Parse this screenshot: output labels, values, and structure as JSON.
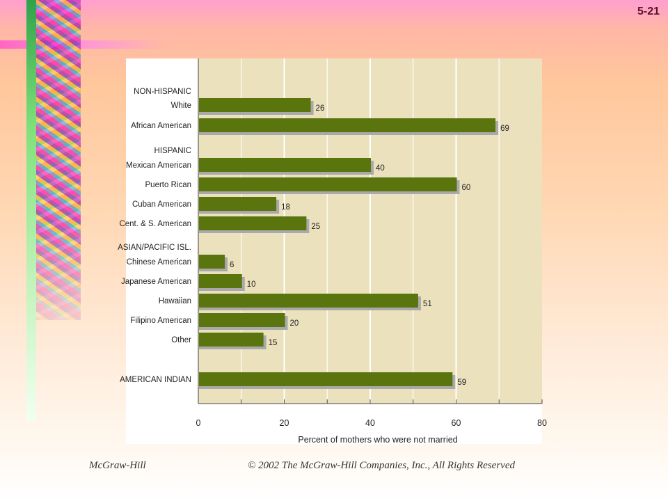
{
  "slide": {
    "number": "5-21",
    "footer_left": "McGraw-Hill",
    "footer_right": "© 2002 The McGraw-Hill Companies, Inc., All Rights Reserved"
  },
  "colors": {
    "bar": "#5a740e",
    "bar_shadow": "#a9a9a9",
    "plot_background": "#ebe1bd",
    "gridline": "#ffffff"
  },
  "chart_data": {
    "type": "bar",
    "orientation": "horizontal",
    "group_headers": [
      "NON-HISPANIC",
      "HISPANIC",
      "ASIAN/PACIFIC ISL."
    ],
    "categories": [
      "White",
      "African American",
      "Mexican American",
      "Puerto Rican",
      "Cuban American",
      "Cent. & S. American",
      "Chinese American",
      "Japanese American",
      "Hawaiian",
      "Filipino American",
      "Other",
      "AMERICAN INDIAN"
    ],
    "values": [
      26,
      69,
      40,
      60,
      18,
      25,
      6,
      10,
      51,
      20,
      15,
      59
    ],
    "data_labels": [
      "26",
      "69",
      "40",
      "60",
      "18",
      "25",
      "6",
      "10",
      "51",
      "20",
      "15",
      "59"
    ],
    "xlabel": "Percent of mothers who were not married",
    "ylabel": "",
    "xlim": [
      0,
      80
    ],
    "x_ticks": [
      "0",
      "20",
      "40",
      "60",
      "80"
    ],
    "grid": true
  }
}
